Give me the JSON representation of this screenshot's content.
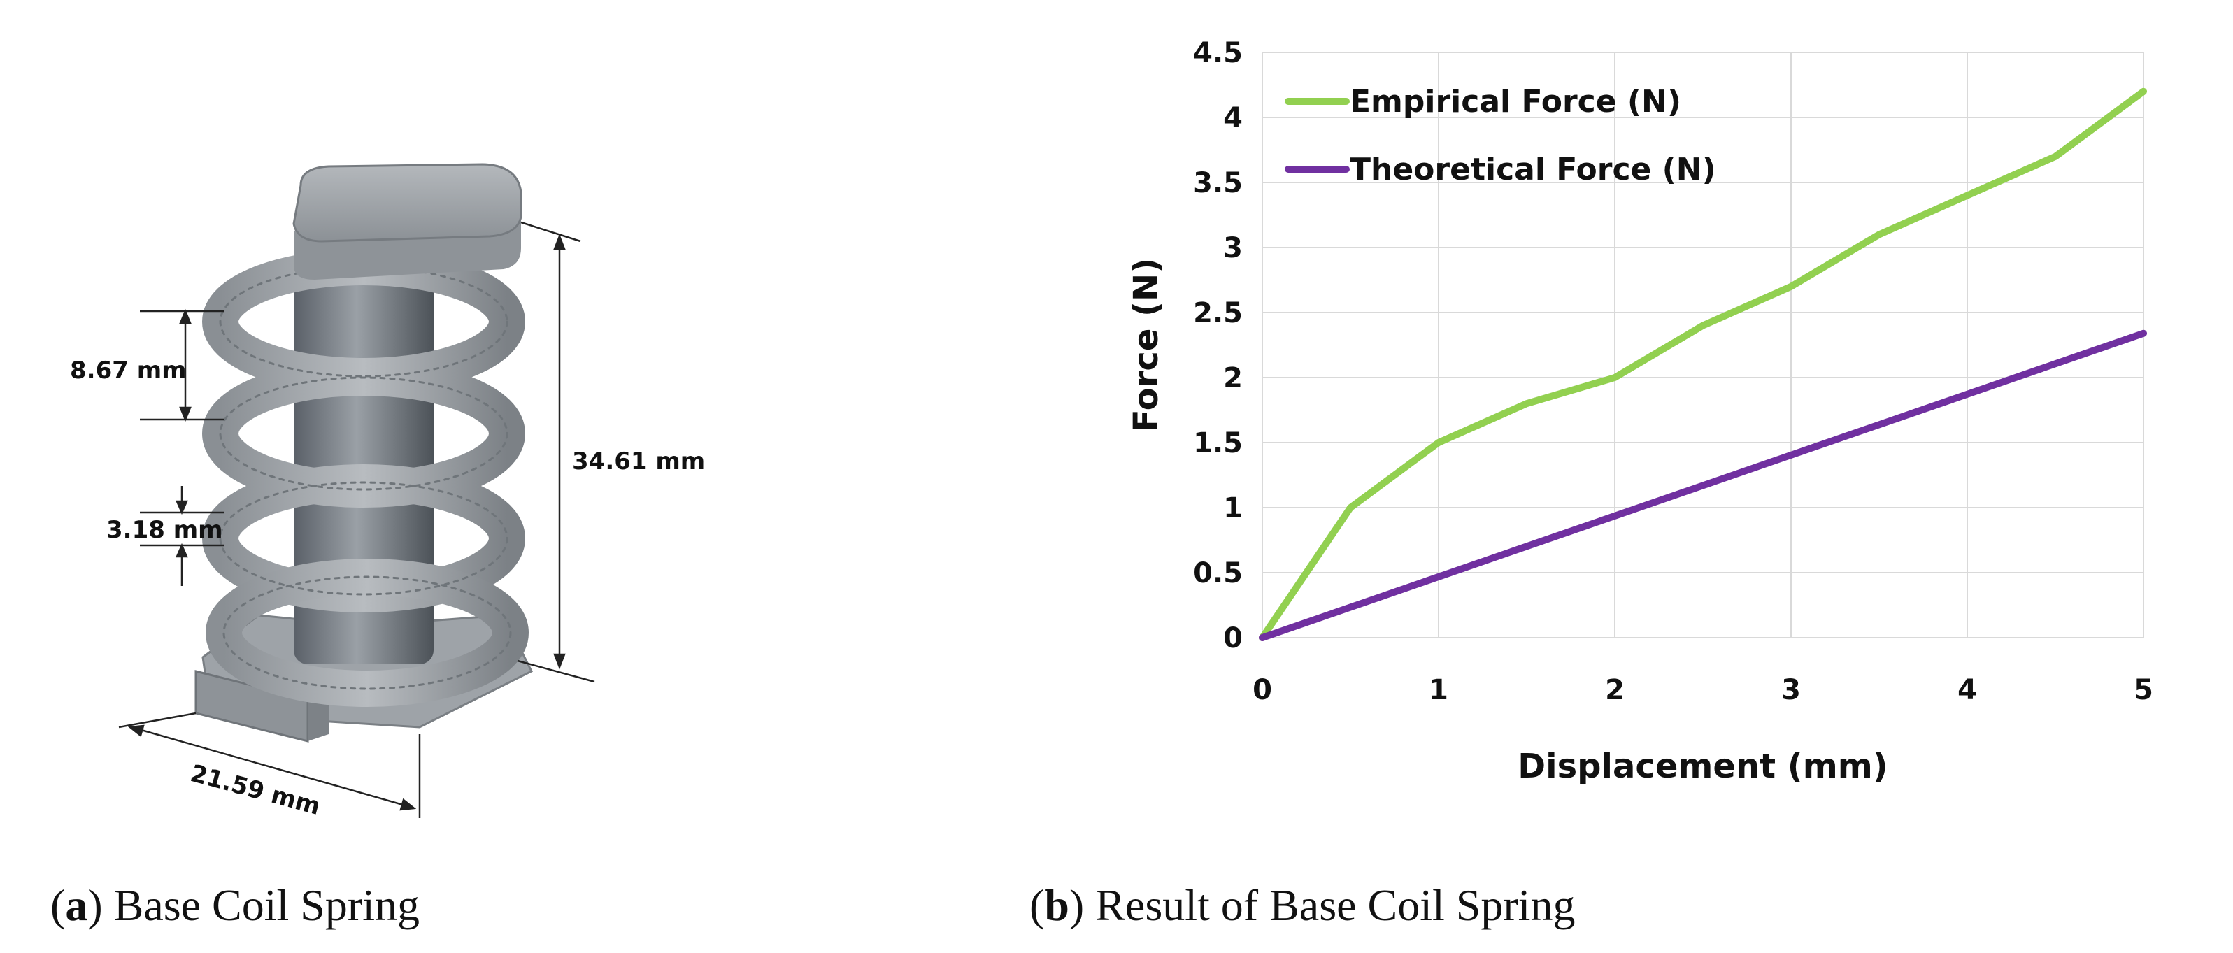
{
  "panel_a": {
    "dimensions": {
      "pitch": "8.67 mm",
      "gap": "3.18 mm",
      "height": "34.61 mm",
      "width": "21.59 mm"
    },
    "caption_letter": "a",
    "caption_text": "Base Coil Spring"
  },
  "panel_b": {
    "caption_letter": "b",
    "caption_text": "Result of Base Coil Spring"
  },
  "chart_data": {
    "type": "line",
    "title": "",
    "xlabel": "Displacement (mm)",
    "ylabel": "Force (N)",
    "xlim": [
      0,
      5
    ],
    "ylim": [
      0,
      4.5
    ],
    "x_ticks": [
      "0",
      "1",
      "2",
      "3",
      "4",
      "5"
    ],
    "y_ticks": [
      "0",
      "0.5",
      "1",
      "1.5",
      "2",
      "2.5",
      "3",
      "3.5",
      "4",
      "4.5"
    ],
    "grid": true,
    "legend_position": "top-left",
    "series": [
      {
        "name": "Empirical Force (N)",
        "color": "#92d050",
        "x": [
          0,
          0.5,
          1,
          1.5,
          2,
          2.5,
          3,
          3.5,
          4,
          4.5,
          5
        ],
        "y": [
          0,
          1.0,
          1.5,
          1.8,
          2.0,
          2.4,
          2.7,
          3.1,
          3.4,
          3.7,
          4.2
        ]
      },
      {
        "name": "Theoretical Force (N)",
        "color": "#7030a0",
        "x": [
          0,
          5
        ],
        "y": [
          0,
          2.34
        ]
      }
    ]
  }
}
